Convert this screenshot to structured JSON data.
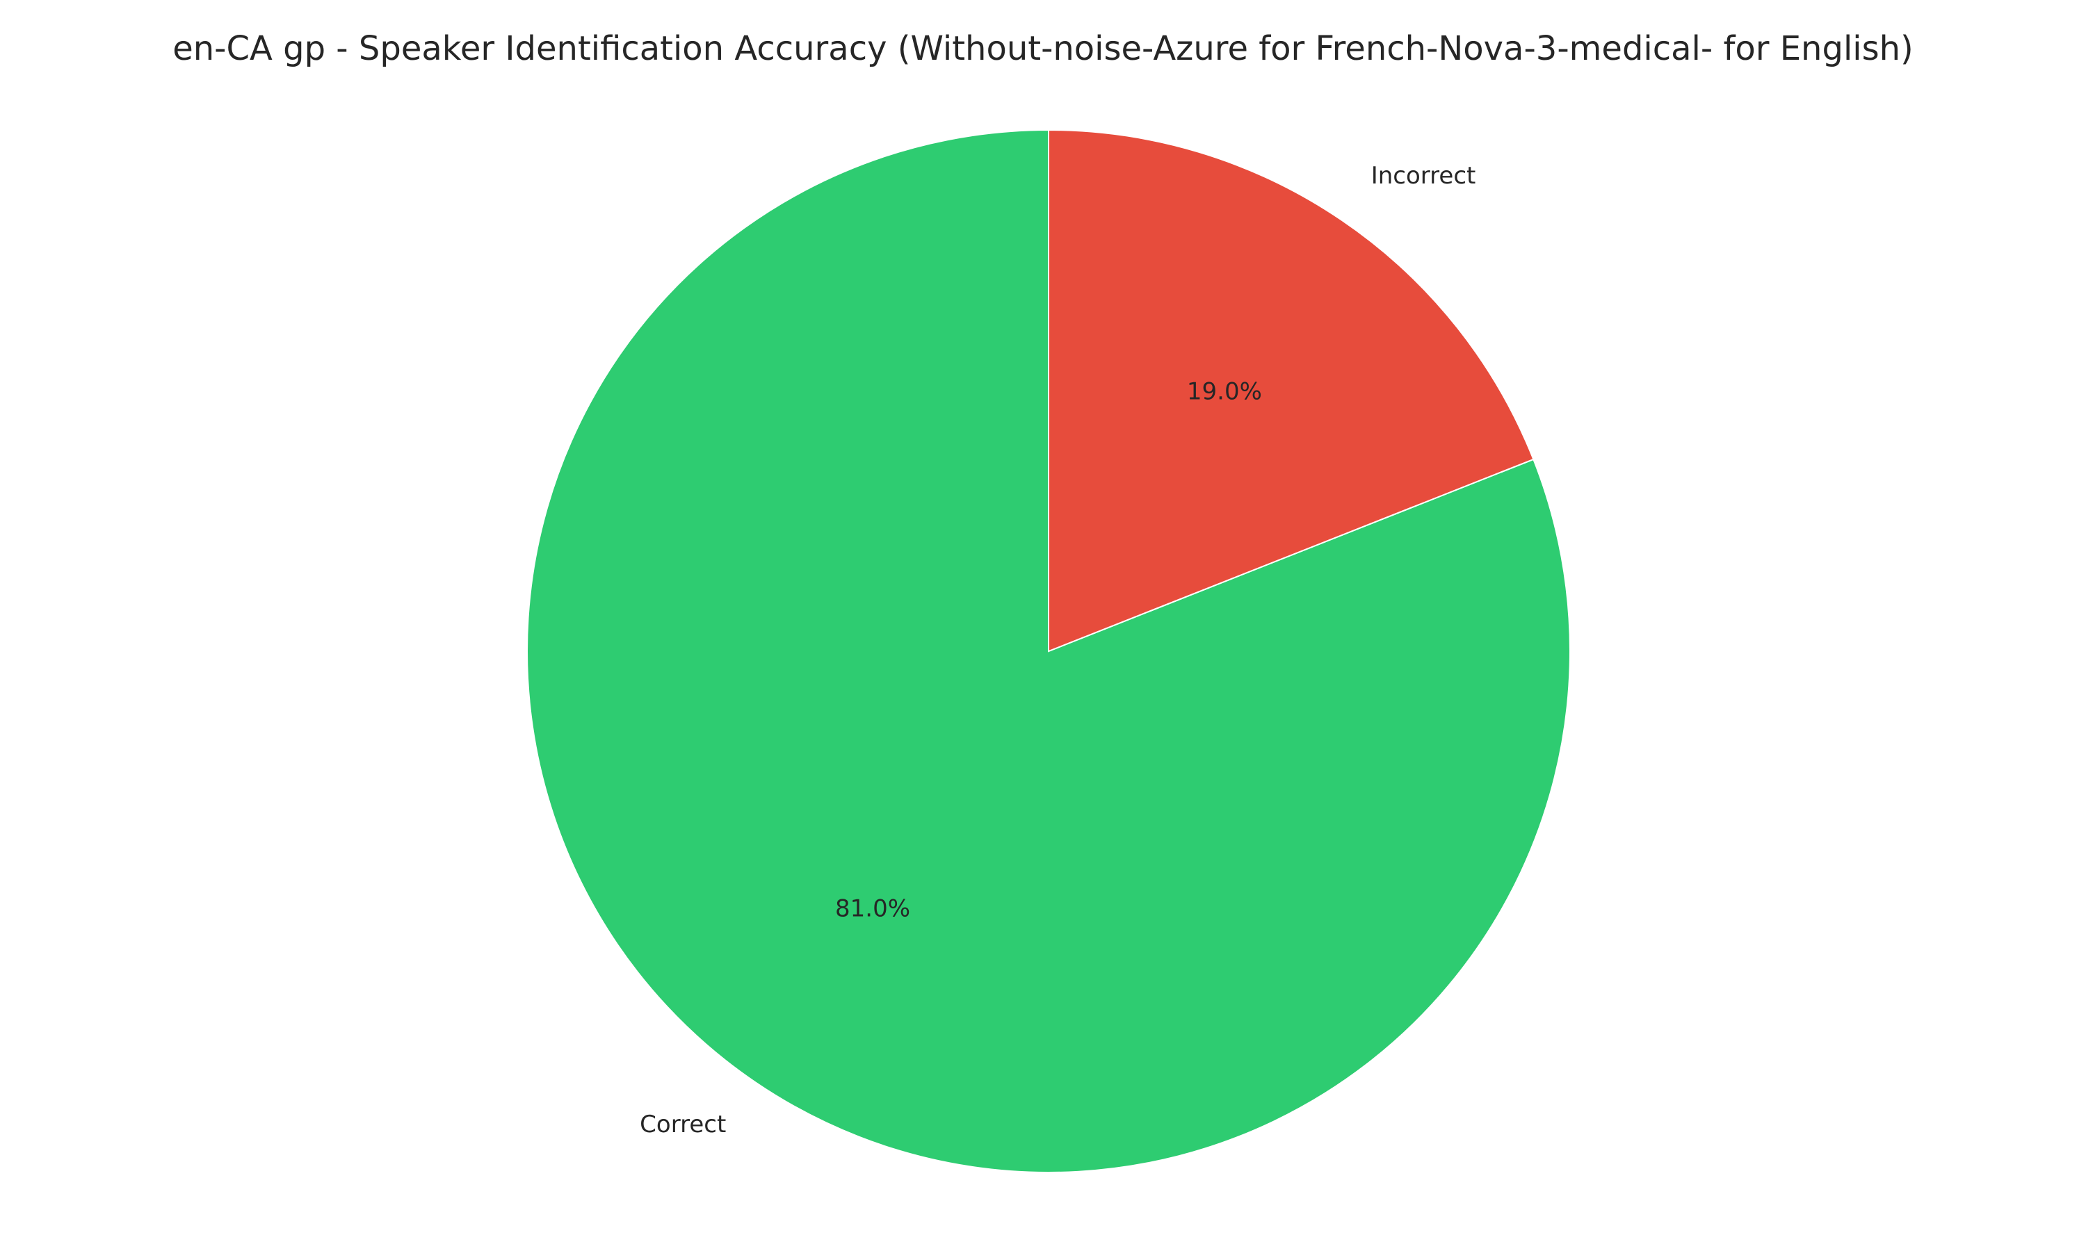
{
  "chart_data": {
    "type": "pie",
    "title": "en-CA gp - Speaker Identification Accuracy (Without-noise-Azure for French-Nova-3-medical- for English)",
    "start_angle_deg": 90,
    "direction": "counterclockwise",
    "slices": [
      {
        "label": "Correct",
        "value": 81.0,
        "pct_label": "81.0%",
        "color": "#2ecc71"
      },
      {
        "label": "Incorrect",
        "value": 19.0,
        "pct_label": "19.0%",
        "color": "#e74c3c"
      }
    ],
    "edge_color": "#ffffff",
    "legend": "none"
  }
}
